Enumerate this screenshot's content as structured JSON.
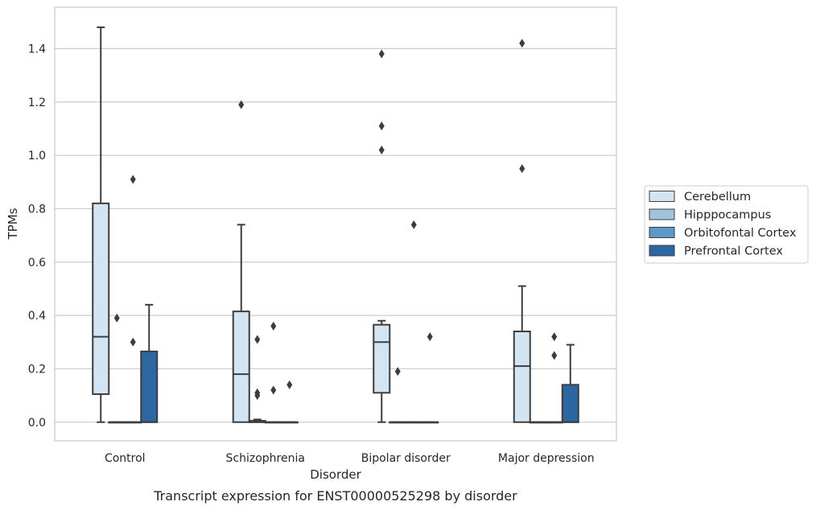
{
  "chart_data": {
    "type": "box",
    "title": "",
    "caption": "Transcript expression for ENST00000525298 by disorder",
    "xlabel": "Disorder",
    "ylabel": "TPMs",
    "ylim": [
      -0.07,
      1.555
    ],
    "yticks": [
      "0.0",
      "0.2",
      "0.4",
      "0.6",
      "0.8",
      "1.0",
      "1.2",
      "1.4"
    ],
    "categories": [
      "Control",
      "Schizophrenia",
      "Bipolar disorder",
      "Major depression"
    ],
    "grid": "horizontal",
    "legend_position": "right",
    "series": [
      {
        "name": "Cerebellum",
        "color": "#d3e4f3",
        "boxes": [
          {
            "whislo": 0.0,
            "q1": 0.105,
            "med": 0.32,
            "q3": 0.82,
            "whishi": 1.48,
            "fliers": []
          },
          {
            "whislo": 0.0,
            "q1": 0.0,
            "med": 0.18,
            "q3": 0.415,
            "whishi": 0.74,
            "fliers": [
              1.19
            ]
          },
          {
            "whislo": 0.0,
            "q1": 0.11,
            "med": 0.3,
            "q3": 0.365,
            "whishi": 0.38,
            "fliers": [
              1.38,
              1.11,
              1.02
            ]
          },
          {
            "whislo": 0.0,
            "q1": 0.0,
            "med": 0.21,
            "q3": 0.34,
            "whishi": 0.51,
            "fliers": [
              1.42,
              0.95
            ]
          }
        ]
      },
      {
        "name": "Hipppocampus",
        "color": "#a0c4de",
        "boxes": [
          {
            "whislo": 0.0,
            "q1": 0.0,
            "med": 0.0,
            "q3": 0.0,
            "whishi": 0.0,
            "fliers": [
              0.39
            ]
          },
          {
            "whislo": 0.0,
            "q1": 0.0,
            "med": 0.0,
            "q3": 0.005,
            "whishi": 0.01,
            "fliers": [
              0.31,
              0.11,
              0.1
            ]
          },
          {
            "whislo": 0.0,
            "q1": 0.0,
            "med": 0.0,
            "q3": 0.0,
            "whishi": 0.0,
            "fliers": [
              0.19
            ]
          },
          {
            "whislo": 0.0,
            "q1": 0.0,
            "med": 0.0,
            "q3": 0.0,
            "whishi": 0.0,
            "fliers": []
          }
        ]
      },
      {
        "name": "Orbitofontal Cortex",
        "color": "#5c9bc8",
        "boxes": [
          {
            "whislo": 0.0,
            "q1": 0.0,
            "med": 0.0,
            "q3": 0.0,
            "whishi": 0.0,
            "fliers": [
              0.91,
              0.3
            ]
          },
          {
            "whislo": 0.0,
            "q1": 0.0,
            "med": 0.0,
            "q3": 0.0,
            "whishi": 0.0,
            "fliers": [
              0.36,
              0.12
            ]
          },
          {
            "whislo": 0.0,
            "q1": 0.0,
            "med": 0.0,
            "q3": 0.0,
            "whishi": 0.0,
            "fliers": [
              0.74
            ]
          },
          {
            "whislo": 0.0,
            "q1": 0.0,
            "med": 0.0,
            "q3": 0.0,
            "whishi": 0.0,
            "fliers": [
              0.32,
              0.25
            ]
          }
        ]
      },
      {
        "name": "Prefrontal Cortex",
        "color": "#2c67a4",
        "boxes": [
          {
            "whislo": 0.0,
            "q1": 0.0,
            "med": 0.0,
            "q3": 0.265,
            "whishi": 0.44,
            "fliers": []
          },
          {
            "whislo": 0.0,
            "q1": 0.0,
            "med": 0.0,
            "q3": 0.0,
            "whishi": 0.0,
            "fliers": [
              0.14
            ]
          },
          {
            "whislo": 0.0,
            "q1": 0.0,
            "med": 0.0,
            "q3": 0.0,
            "whishi": 0.0,
            "fliers": [
              0.32
            ]
          },
          {
            "whislo": 0.0,
            "q1": 0.0,
            "med": 0.0,
            "q3": 0.14,
            "whishi": 0.29,
            "fliers": []
          }
        ]
      }
    ]
  }
}
